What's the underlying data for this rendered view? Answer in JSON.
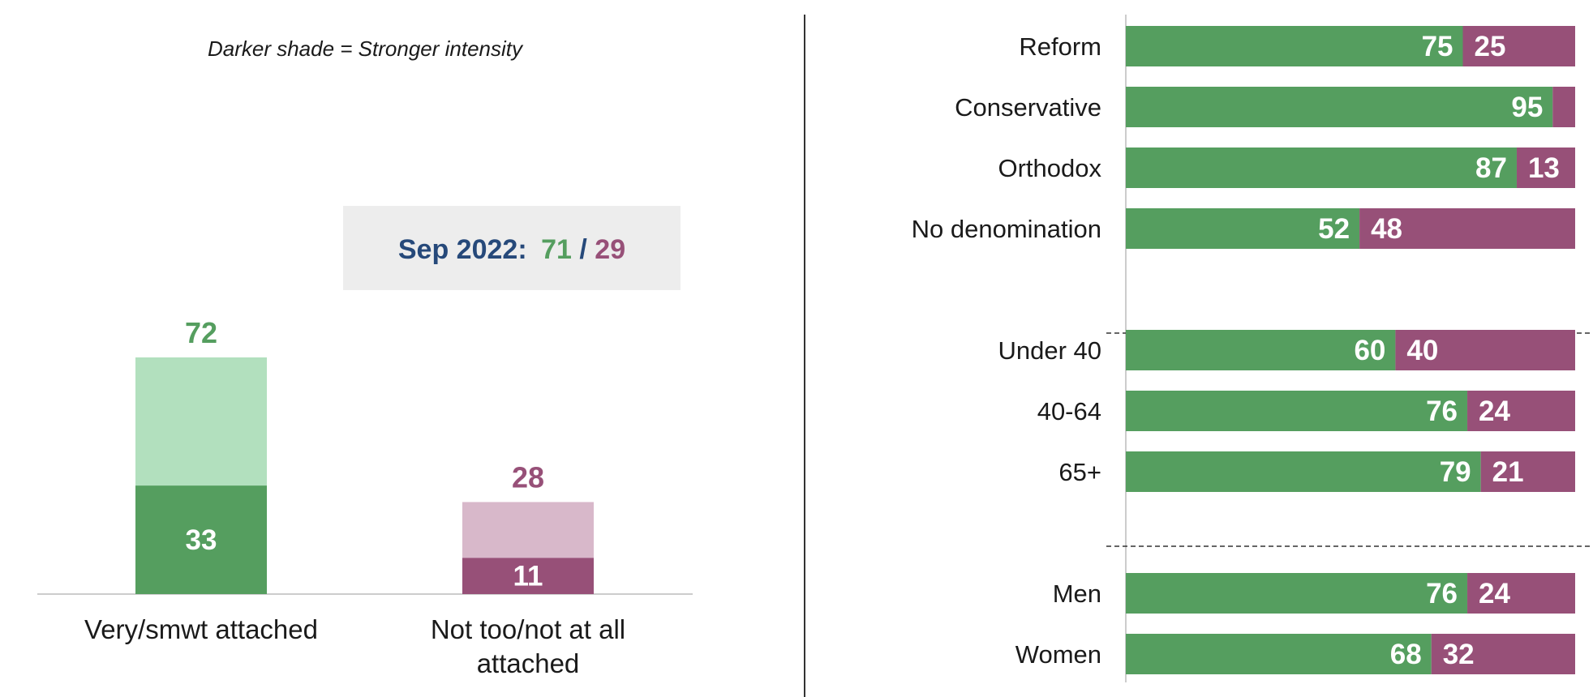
{
  "colors": {
    "green_dark": "#559E5F",
    "green_light": "#B2E0BE",
    "purple_dark": "#975078",
    "purple_light": "#D8B8CA",
    "navy": "#26497A",
    "callout_bg": "#EDEDED",
    "axis": "#CCCCCC",
    "divider": "#333333"
  },
  "chart_data": [
    {
      "type": "bar",
      "note": "Darker shade = Stronger intensity",
      "callout": {
        "label": "Sep 2022:",
        "value_a": "71",
        "slash": "/",
        "value_b": "29"
      },
      "categories": [
        "Very/smwt attached",
        "Not too/not at all attached"
      ],
      "category_lines": [
        [
          "Very/smwt attached"
        ],
        [
          "Not too/not at all",
          "attached"
        ]
      ],
      "totals": [
        72,
        28
      ],
      "strong": [
        33,
        11
      ],
      "ylim": [
        0,
        80
      ]
    },
    {
      "type": "bar",
      "orientation": "horizontal",
      "stacked": true,
      "categories": [
        "Reform",
        "Conservative",
        "Orthodox",
        "No denomination",
        "Under 40",
        "40-64",
        "65+",
        "Men",
        "Women"
      ],
      "groups": [
        [
          0,
          1,
          2,
          3
        ],
        [
          4,
          5,
          6
        ],
        [
          7,
          8
        ]
      ],
      "series": [
        {
          "values": [
            75,
            95,
            87,
            52,
            60,
            76,
            79,
            76,
            68
          ]
        },
        {
          "values": [
            25,
            5,
            13,
            48,
            40,
            24,
            21,
            24,
            32
          ]
        }
      ],
      "labels_a": [
        "75",
        "95",
        "87",
        "52",
        "60",
        "76",
        "79",
        "76",
        "68"
      ],
      "labels_b": [
        "25",
        "",
        "13",
        "48",
        "40",
        "24",
        "21",
        "24",
        "32"
      ]
    }
  ]
}
